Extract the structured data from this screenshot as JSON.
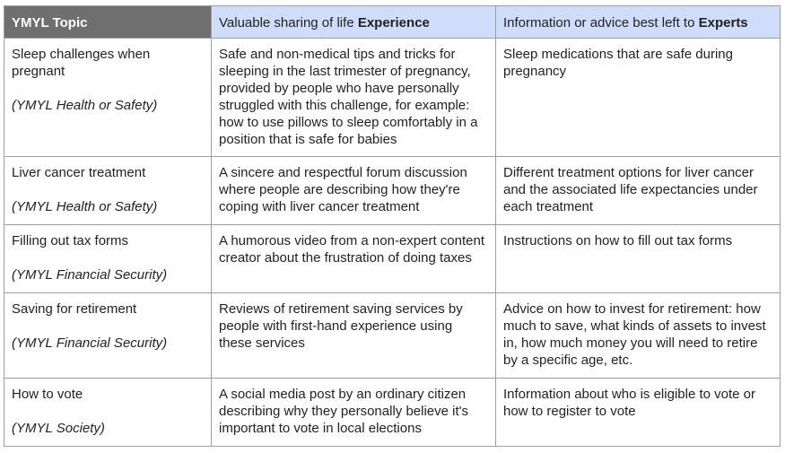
{
  "header": {
    "topic": "YMYL Topic",
    "experience_prefix": "Valuable sharing of life ",
    "experience_emphasis": "Experience",
    "experts_prefix": "Information or advice best left to ",
    "experts_emphasis": "Experts"
  },
  "rows": [
    {
      "topic": "Sleep challenges when pregnant",
      "category": "(YMYL Health or Safety)",
      "experience": "Safe and non-medical tips and tricks for sleeping in the last trimester of pregnancy, provided by people who have personally struggled with this challenge, for example: how to use pillows to sleep comfortably in a position that is safe for babies",
      "experts": "Sleep medications that are safe during pregnancy"
    },
    {
      "topic": "Liver cancer treatment",
      "category": "(YMYL Health or Safety)",
      "experience": "A sincere and respectful forum discussion where people are describing how they're coping with liver cancer treatment",
      "experts": "Different treatment options for liver cancer and the associated life expectancies under each treatment"
    },
    {
      "topic": "Filling out tax forms",
      "category": "(YMYL Financial Security)",
      "experience": "A humorous video from a non-expert content creator about the frustration of doing taxes",
      "experts": "Instructions on how to fill out tax forms"
    },
    {
      "topic": "Saving for retirement",
      "category": "(YMYL Financial Security)",
      "experience": "Reviews of retirement saving services by people with first-hand experience using these services",
      "experts": "Advice on how to invest for retirement: how much to save, what kinds of assets to invest in, how much money you will need to retire by a specific age, etc."
    },
    {
      "topic": "How to vote",
      "category": "(YMYL Society)",
      "experience": "A social media post by an ordinary citizen describing why they personally believe it's important to vote in local elections",
      "experts": "Information about who is eligible to vote or how to register to vote"
    }
  ]
}
